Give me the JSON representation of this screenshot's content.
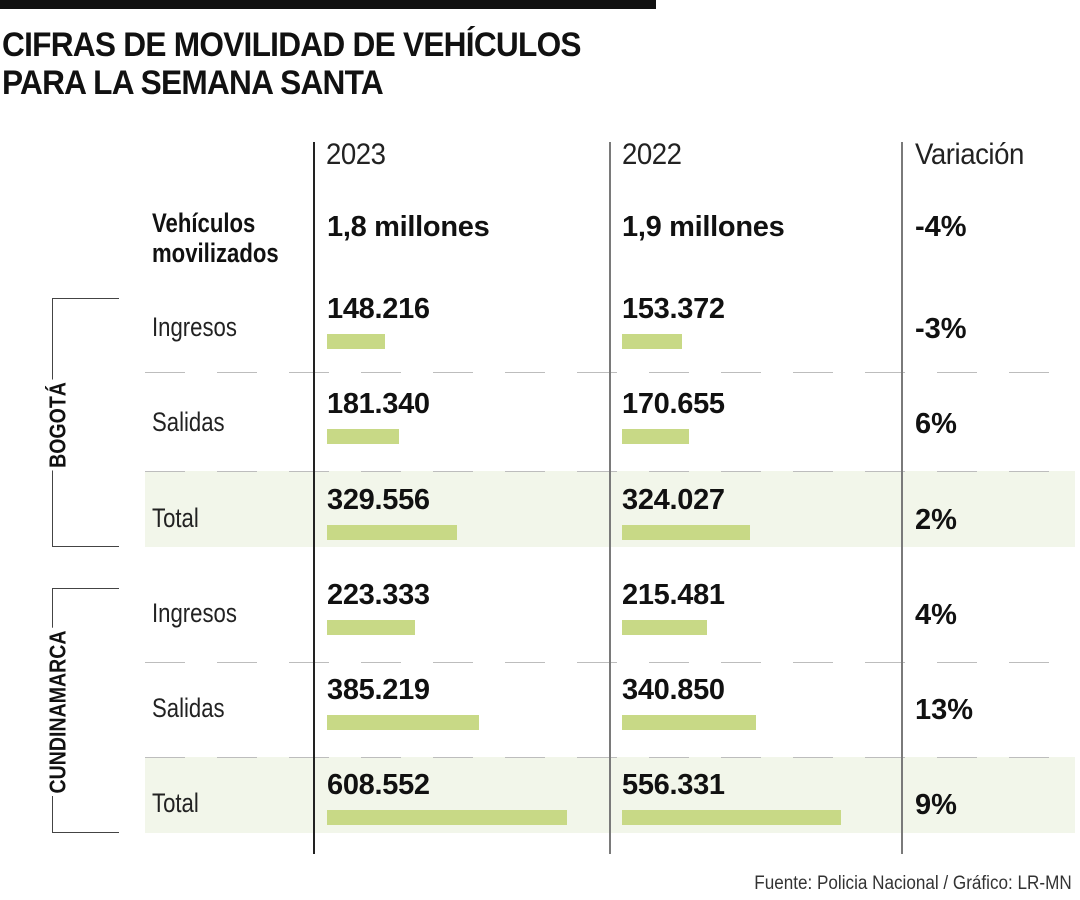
{
  "title_lines": [
    "CIFRAS DE MOVILIDAD DE VEHÍCULOS",
    "PARA LA SEMANA SANTA"
  ],
  "source": "Fuente: Policia Nacional / Gráfico: LR-MN",
  "colors": {
    "bar": "#c8d986",
    "total_row_bg": "#f2f6ea",
    "text": "#111111"
  },
  "chart_data": {
    "type": "table",
    "title": "CIFRAS DE MOVILIDAD DE VEHÍCULOS PARA LA SEMANA SANTA",
    "columns": [
      "2023",
      "2022",
      "Variación"
    ],
    "summary": {
      "label_lines": [
        "Vehículos",
        "movilizados"
      ],
      "v2023": "1,8 millones",
      "v2022": "1,9 millones",
      "variation": "-4%"
    },
    "groups": [
      {
        "name": "BOGOTÁ",
        "rows": [
          {
            "label": "Ingresos",
            "v2023": 148216,
            "v2023_text": "148.216",
            "v2022": 153372,
            "v2022_text": "153.372",
            "variation": "-3%",
            "total": false
          },
          {
            "label": "Salidas",
            "v2023": 181340,
            "v2023_text": "181.340",
            "v2022": 170655,
            "v2022_text": "170.655",
            "variation": "6%",
            "total": false
          },
          {
            "label": "Total",
            "v2023": 329556,
            "v2023_text": "329.556",
            "v2022": 324027,
            "v2022_text": "324.027",
            "variation": "2%",
            "total": true
          }
        ]
      },
      {
        "name": "CUNDINAMARCA",
        "rows": [
          {
            "label": "Ingresos",
            "v2023": 223333,
            "v2023_text": "223.333",
            "v2022": 215481,
            "v2022_text": "215.481",
            "variation": "4%",
            "total": false
          },
          {
            "label": "Salidas",
            "v2023": 385219,
            "v2023_text": "385.219",
            "v2022": 340850,
            "v2022_text": "340.850",
            "variation": "13%",
            "total": false
          },
          {
            "label": "Total",
            "v2023": 608552,
            "v2023_text": "608.552",
            "v2022": 556331,
            "v2022_text": "556.331",
            "variation": "9%",
            "total": true
          }
        ]
      }
    ],
    "bar_scale_max": 608552
  }
}
